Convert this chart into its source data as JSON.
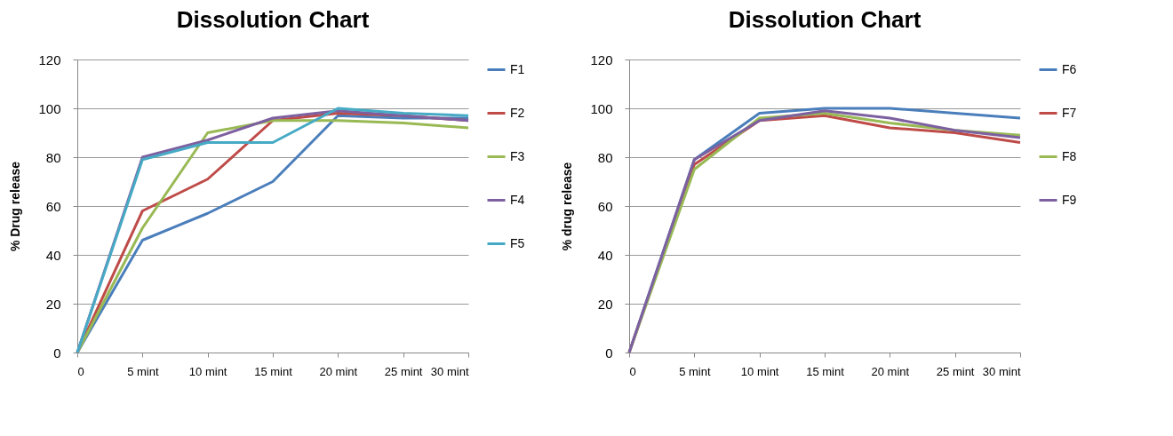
{
  "chart_data": [
    {
      "type": "line",
      "title": "Dissolution Chart",
      "ylabel": "%  Drug release",
      "categories": [
        "0",
        "5  mint",
        "10 mint",
        "15 mint",
        "20 mint",
        "25 mint",
        "30 mint"
      ],
      "ylim": [
        0,
        120
      ],
      "yticks": [
        0,
        20,
        40,
        60,
        80,
        100,
        120
      ],
      "grid": "y",
      "legend": "right",
      "marker": "none",
      "line_style": "solid",
      "series": [
        {
          "name": "F1",
          "color": "#4a7ebb",
          "values": [
            0,
            46,
            57,
            70,
            97,
            96,
            96
          ]
        },
        {
          "name": "F2",
          "color": "#be4b48",
          "values": [
            0,
            58,
            71,
            95,
            98,
            97,
            95
          ]
        },
        {
          "name": "F3",
          "color": "#98b954",
          "values": [
            0,
            51,
            90,
            95,
            95,
            94,
            92
          ]
        },
        {
          "name": "F4",
          "color": "#7d60a0",
          "values": [
            0,
            80,
            87,
            96,
            99,
            97,
            95
          ]
        },
        {
          "name": "F5",
          "color": "#46aac5",
          "values": [
            0,
            79,
            86,
            86,
            100,
            98,
            97
          ]
        }
      ]
    },
    {
      "type": "line",
      "title": "Dissolution Chart",
      "ylabel": "% drug release",
      "categories": [
        "0",
        "5  mint",
        "10 mint",
        "15 mint",
        "20 mint",
        "25 mint",
        "30 mint"
      ],
      "ylim": [
        0,
        120
      ],
      "yticks": [
        0,
        20,
        40,
        60,
        80,
        100,
        120
      ],
      "grid": "y",
      "legend": "right",
      "marker": "none",
      "line_style": "solid",
      "series": [
        {
          "name": "F6",
          "color": "#4a7ebb",
          "values": [
            0,
            79,
            98,
            100,
            100,
            98,
            96
          ]
        },
        {
          "name": "F7",
          "color": "#be4b48",
          "values": [
            0,
            77,
            95,
            97,
            92,
            90,
            86
          ]
        },
        {
          "name": "F8",
          "color": "#98b954",
          "values": [
            0,
            75,
            96,
            98,
            94,
            91,
            89
          ]
        },
        {
          "name": "F9",
          "color": "#7d60a0",
          "values": [
            0,
            79,
            95,
            99,
            96,
            91,
            88
          ]
        }
      ]
    }
  ]
}
